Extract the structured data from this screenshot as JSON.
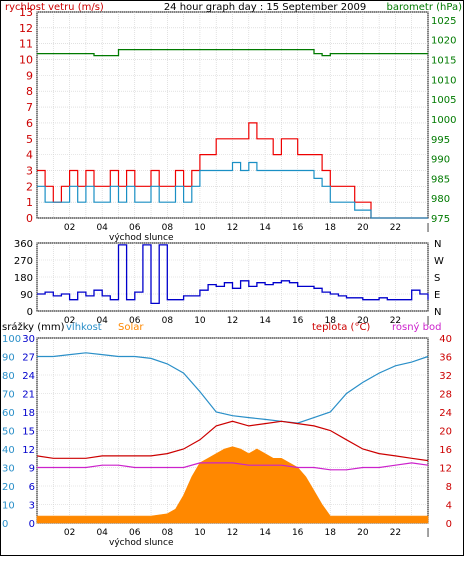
{
  "chart_data": [
    {
      "type": "line",
      "title": "24 hour graph day : 15 September 2009",
      "left_axis_label": "rychlost vetru (m/s)",
      "right_axis_label": "barometr (hPa)",
      "x_tick_labels": [
        "02",
        "04",
        "06",
        "08",
        "10",
        "12",
        "14",
        "16",
        "18",
        "20",
        "22",
        "|"
      ],
      "x_caption": "východ slunce",
      "left_ticks": [
        "0",
        "1",
        "2",
        "3",
        "4",
        "5",
        "6",
        "7",
        "8",
        "9",
        "10",
        "11",
        "12",
        "13"
      ],
      "right_ticks": [
        "975",
        "980",
        "985",
        "990",
        "995",
        "1000",
        "1005",
        "1010",
        "1015",
        "1020",
        "1025"
      ],
      "ylim": [
        0,
        13
      ],
      "y2lim": [
        975,
        1027
      ],
      "grid": true,
      "colors": {
        "wind_gust": "#ee0000",
        "wind_avg": "#1a8fc4",
        "barometer": "#007a00",
        "axis_left": "#cc0000",
        "axis_right": "#007a00"
      },
      "series": [
        {
          "name": "wind_gust",
          "axis": "left",
          "x": [
            0,
            0.5,
            1,
            1.5,
            2,
            2.5,
            3,
            3.5,
            4,
            4.5,
            5,
            5.5,
            6,
            6.5,
            7,
            7.5,
            8,
            8.5,
            9,
            9.5,
            10,
            10.5,
            11,
            11.5,
            12,
            12.5,
            13,
            13.5,
            14,
            14.5,
            15,
            15.5,
            16,
            16.5,
            17,
            17.5,
            18,
            18.5,
            19,
            19.5,
            20,
            20.5,
            21,
            21.5,
            22,
            22.5,
            23,
            23.5,
            24
          ],
          "values": [
            3,
            2,
            1,
            2,
            3,
            2,
            3,
            2,
            2,
            3,
            2,
            3,
            2,
            2,
            3,
            2,
            2,
            3,
            2,
            3,
            4,
            4,
            5,
            5,
            5,
            5,
            6,
            5,
            5,
            4,
            5,
            5,
            4,
            4,
            4,
            3,
            2,
            2,
            2,
            1,
            1,
            0,
            0,
            0,
            0,
            0,
            0,
            0,
            0
          ]
        },
        {
          "name": "wind_avg",
          "axis": "left",
          "x": [
            0,
            0.5,
            1,
            1.5,
            2,
            2.5,
            3,
            3.5,
            4,
            4.5,
            5,
            5.5,
            6,
            6.5,
            7,
            7.5,
            8,
            8.5,
            9,
            9.5,
            10,
            10.5,
            11,
            11.5,
            12,
            12.5,
            13,
            13.5,
            14,
            14.5,
            15,
            15.5,
            16,
            16.5,
            17,
            17.5,
            18,
            18.5,
            19,
            19.5,
            20,
            20.5,
            21,
            21.5,
            22,
            22.5,
            23,
            23.5,
            24
          ],
          "values": [
            2,
            1,
            1,
            1,
            2,
            1,
            2,
            1,
            1,
            2,
            1,
            2,
            1,
            1,
            2,
            1,
            1,
            2,
            1,
            2,
            3,
            3,
            3,
            3,
            3.5,
            3,
            3.5,
            3,
            3,
            3,
            3,
            3,
            3,
            3,
            2.5,
            2,
            1,
            1,
            1,
            0.5,
            0.5,
            0,
            0,
            0,
            0,
            0,
            0,
            0,
            0
          ]
        },
        {
          "name": "barometer",
          "axis": "right",
          "x": [
            0,
            3.4,
            3.5,
            4.8,
            5,
            9,
            10,
            12,
            14,
            17,
            17.5,
            18,
            20,
            22,
            24
          ],
          "values": [
            1016.5,
            1016.5,
            1016.0,
            1016.0,
            1017.5,
            1017.5,
            1017.5,
            1017.5,
            1017.5,
            1016.5,
            1016.0,
            1016.5,
            1016.5,
            1016.5,
            1016.5
          ]
        }
      ]
    },
    {
      "type": "line",
      "title": "",
      "left_ticks": [
        "0",
        "90",
        "180",
        "270",
        "360"
      ],
      "right_ticks": [
        "N",
        "E",
        "S",
        "W",
        "N"
      ],
      "x_tick_labels": [
        "02",
        "04",
        "06",
        "08",
        "10",
        "12",
        "14",
        "16",
        "18",
        "20",
        "22",
        "|"
      ],
      "ylim": [
        0,
        360
      ],
      "grid": true,
      "colors": {
        "direction": "#0000cc"
      },
      "series": [
        {
          "name": "direction",
          "x": [
            0,
            0.5,
            1,
            1.5,
            2,
            2.5,
            3,
            3.5,
            4,
            4.5,
            5,
            5.5,
            6,
            6.5,
            7,
            7.5,
            8,
            8.5,
            9,
            9.5,
            10,
            10.5,
            11,
            11.5,
            12,
            12.5,
            13,
            13.5,
            14,
            14.5,
            15,
            15.5,
            16,
            16.5,
            17,
            17.5,
            18,
            18.5,
            19,
            19.5,
            20,
            20.5,
            21,
            21.5,
            22,
            22.5,
            23,
            23.5,
            24
          ],
          "values": [
            90,
            100,
            80,
            90,
            60,
            100,
            80,
            110,
            80,
            60,
            350,
            60,
            100,
            350,
            40,
            350,
            60,
            60,
            80,
            80,
            110,
            140,
            130,
            150,
            120,
            160,
            130,
            150,
            140,
            150,
            160,
            150,
            130,
            130,
            120,
            100,
            90,
            80,
            70,
            70,
            60,
            60,
            70,
            60,
            60,
            60,
            110,
            90,
            60
          ]
        }
      ]
    },
    {
      "type": "line",
      "title": "",
      "labels": {
        "rain": "srážky (mm)",
        "humidity": "vlhkost",
        "solar": "Solar",
        "temperature": "teplota (°C)",
        "dewpoint": "rosný bod"
      },
      "left_ticks_rain": [
        "0",
        "3",
        "6",
        "9",
        "12",
        "15",
        "18",
        "21",
        "24",
        "27",
        "30"
      ],
      "left_ticks_humidity": [
        "0",
        "10",
        "20",
        "30",
        "40",
        "50",
        "60",
        "70",
        "80",
        "90",
        "100"
      ],
      "right_ticks": [
        "0",
        "4",
        "8",
        "12",
        "16",
        "20",
        "24",
        "28",
        "32",
        "36",
        "40"
      ],
      "x_tick_labels": [
        "02",
        "04",
        "06",
        "08",
        "10",
        "12",
        "14",
        "16",
        "18",
        "20",
        "22",
        "|"
      ],
      "x_caption": "východ slunce",
      "ylim": [
        0,
        100
      ],
      "y2lim": [
        0,
        40
      ],
      "grid": true,
      "colors": {
        "rain": "#0000cc",
        "humidity": "#2a8fc8",
        "solar": "#ff8800",
        "temperature": "#cc0000",
        "dewpoint": "#cc22cc",
        "axis_right": "#cc0000"
      },
      "series": [
        {
          "name": "humidity",
          "axis": "left",
          "x": [
            0,
            1,
            2,
            3,
            4,
            5,
            6,
            7,
            8,
            9,
            10,
            11,
            12,
            13,
            14,
            15,
            16,
            17,
            18,
            19,
            20,
            21,
            22,
            23,
            24
          ],
          "values": [
            90,
            90,
            91,
            92,
            91,
            90,
            90,
            89,
            86,
            81,
            71,
            60,
            58,
            57,
            56,
            55,
            54,
            57,
            60,
            70,
            76,
            81,
            85,
            87,
            90
          ]
        },
        {
          "name": "temperature",
          "axis": "right",
          "x": [
            0,
            1,
            2,
            3,
            4,
            5,
            6,
            7,
            8,
            9,
            10,
            11,
            12,
            13,
            14,
            15,
            16,
            17,
            18,
            19,
            20,
            21,
            22,
            23,
            24
          ],
          "values": [
            14.5,
            14,
            14,
            14,
            14.5,
            14.5,
            14.5,
            14.5,
            15,
            16,
            18,
            21,
            22,
            21,
            21.5,
            22,
            21.5,
            21,
            20,
            18,
            16,
            15,
            14.5,
            14,
            13.5
          ]
        },
        {
          "name": "dewpoint",
          "axis": "right",
          "x": [
            0,
            1,
            2,
            3,
            4,
            5,
            6,
            7,
            8,
            9,
            10,
            11,
            12,
            13,
            14,
            15,
            16,
            17,
            18,
            19,
            20,
            21,
            22,
            23,
            24
          ],
          "values": [
            12,
            12,
            12,
            12,
            12.5,
            12.5,
            12,
            12,
            12,
            12,
            13,
            13,
            13,
            12.5,
            12.5,
            12.5,
            12,
            12,
            11.5,
            11.5,
            12,
            12,
            12.5,
            13,
            12.5
          ]
        },
        {
          "name": "solar",
          "axis": "right",
          "x": [
            0,
            6,
            7,
            8,
            8.5,
            9,
            9.5,
            10,
            10.5,
            11,
            11.5,
            12,
            12.5,
            13,
            13.5,
            14,
            14.5,
            15,
            15.5,
            16,
            16.5,
            17,
            17.5,
            18,
            19,
            24
          ],
          "values": [
            1.5,
            1.5,
            1.5,
            2,
            3,
            6,
            10,
            13,
            14,
            15,
            16,
            16.5,
            16,
            15,
            16,
            15,
            14,
            14,
            13,
            12,
            10,
            7,
            4,
            1.5,
            1.5,
            1.5
          ]
        }
      ]
    }
  ]
}
